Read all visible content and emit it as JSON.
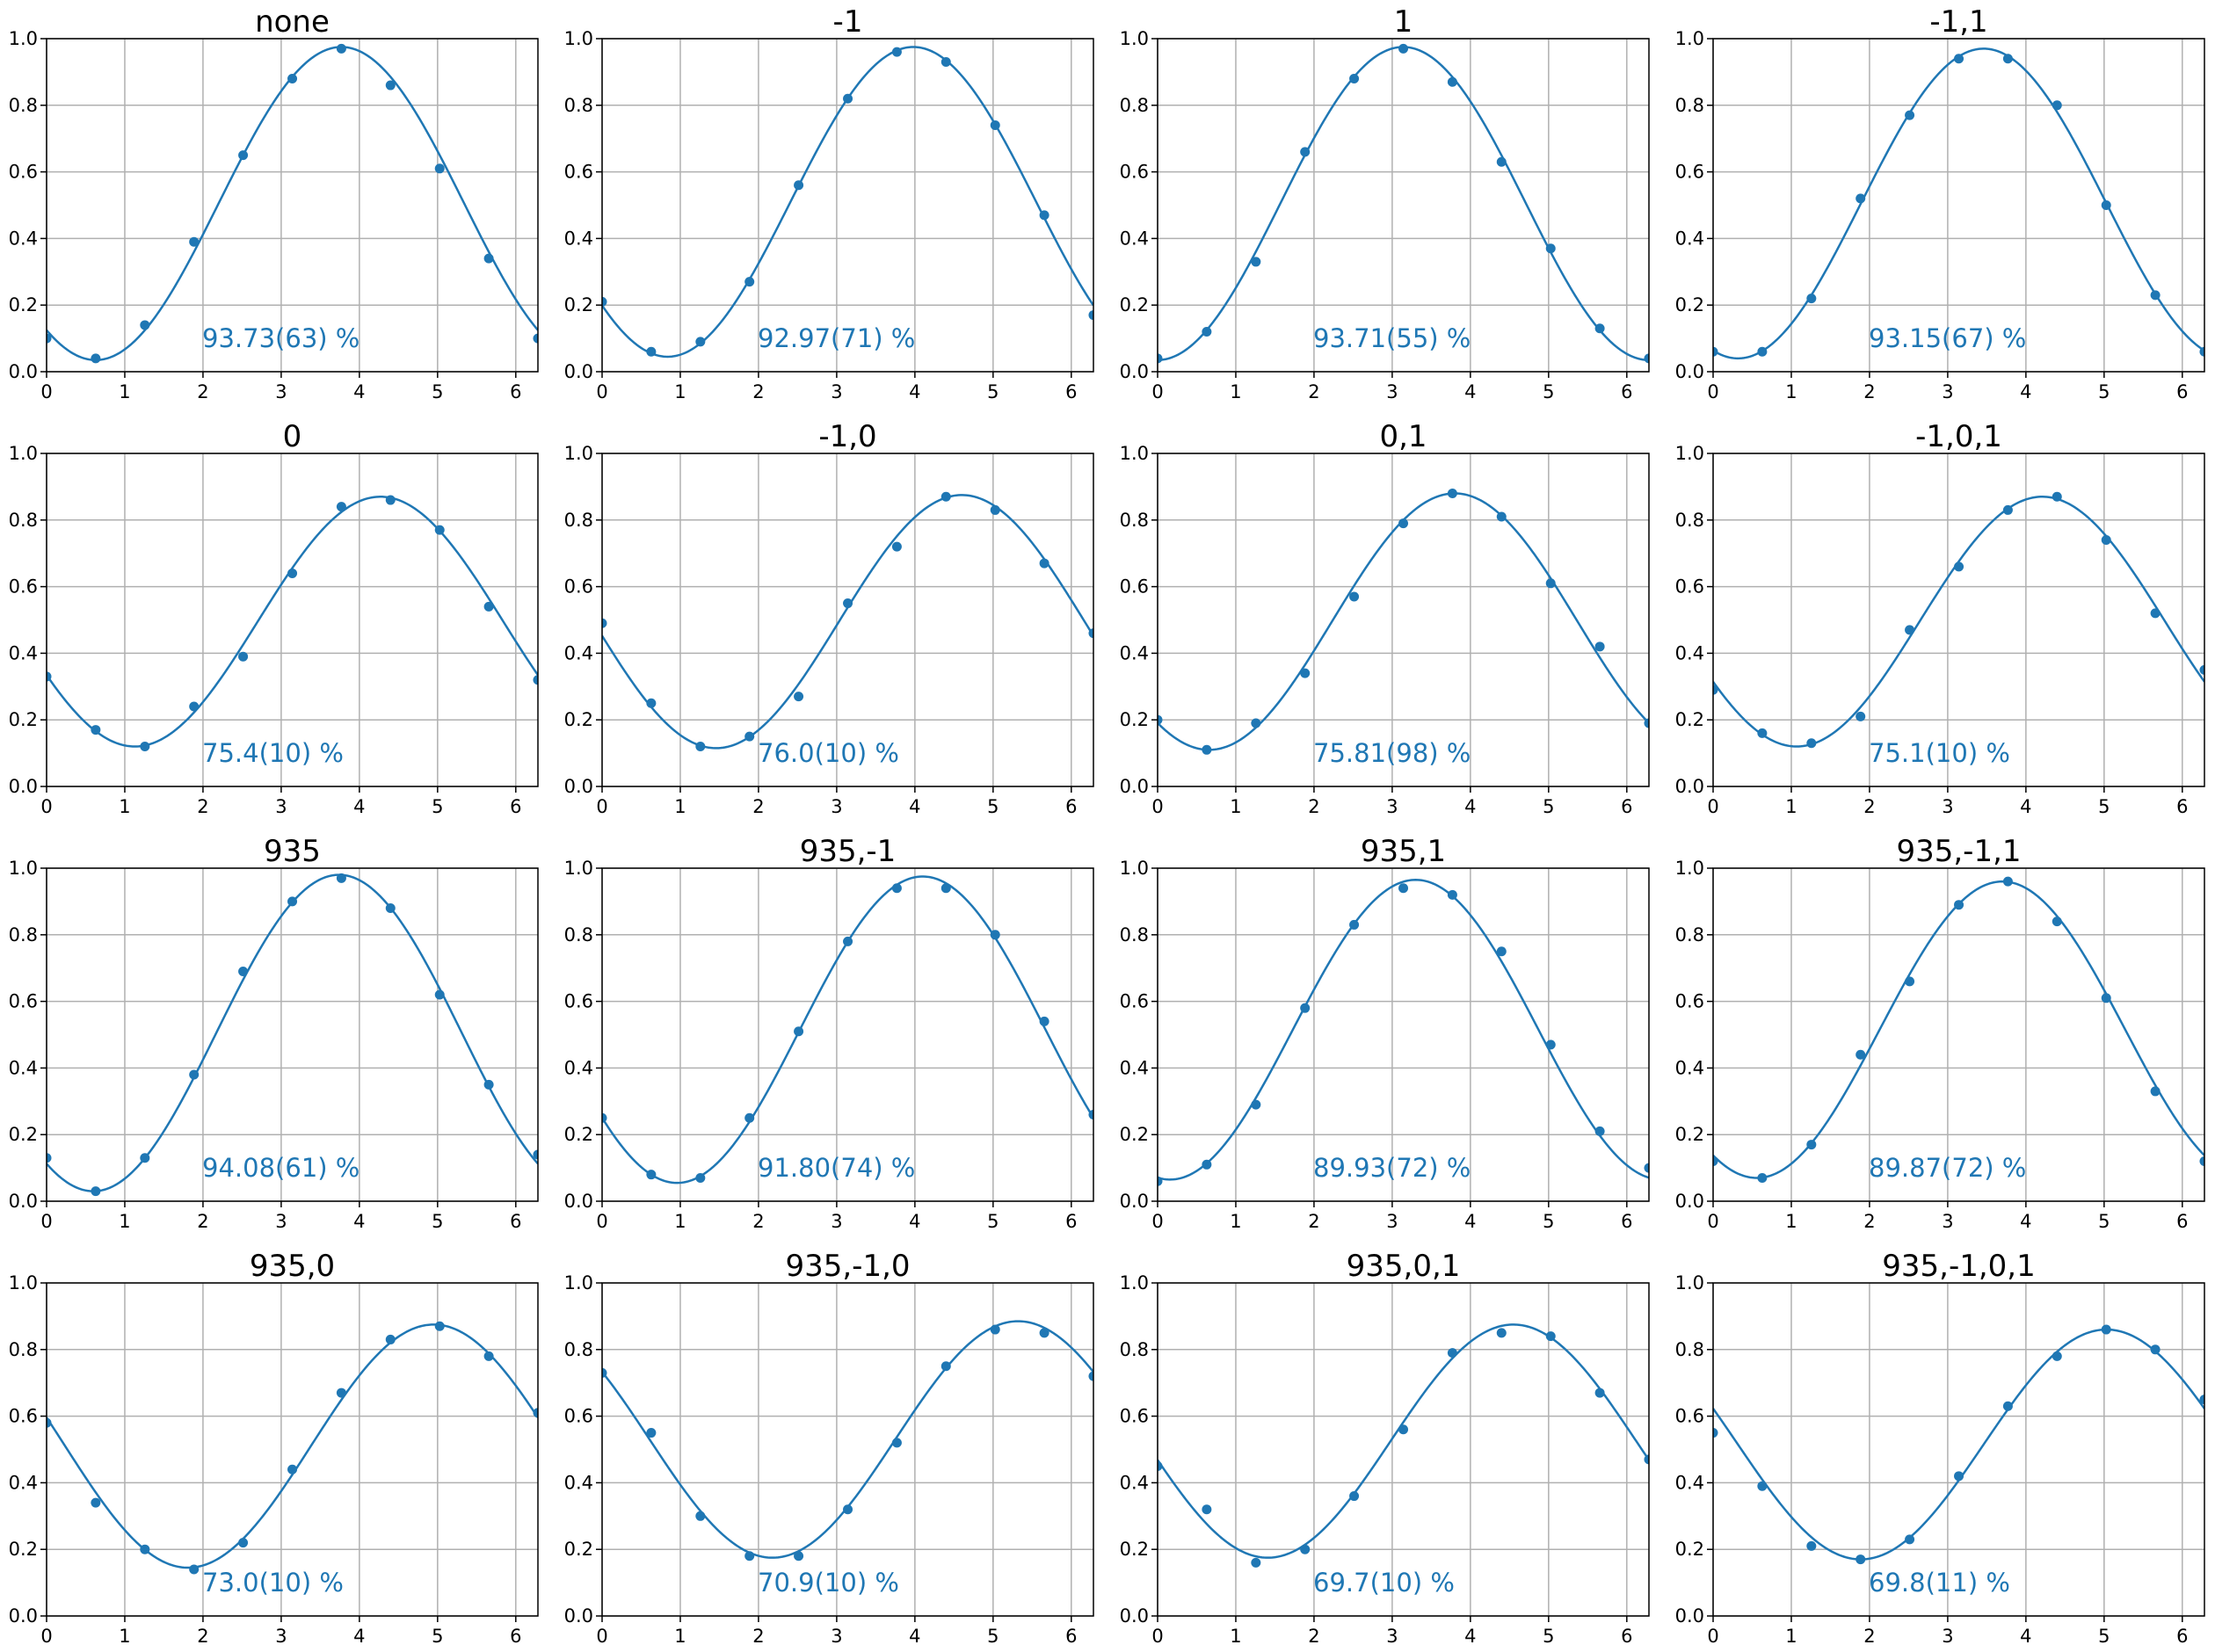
{
  "colors": {
    "series": "#1f77b4",
    "grid": "#b0b0b0",
    "axes": "#000000"
  },
  "chart_data": [
    {
      "type": "scatter",
      "title": "none",
      "annotation": "93.73(63) %",
      "xlim": [
        0,
        6.2832
      ],
      "ylim": [
        0,
        1
      ],
      "xticks": [
        0,
        1,
        2,
        3,
        4,
        5,
        6
      ],
      "yticks": [
        0.0,
        0.2,
        0.4,
        0.6,
        0.8,
        1.0
      ],
      "grid": true,
      "points": {
        "x": [
          0,
          0.628,
          1.257,
          1.885,
          2.513,
          3.142,
          3.77,
          4.398,
          5.027,
          5.655,
          6.283
        ],
        "y": [
          0.1,
          0.04,
          0.14,
          0.39,
          0.65,
          0.88,
          0.97,
          0.86,
          0.61,
          0.34,
          0.1
        ]
      },
      "fit": {
        "offset": 0.505,
        "amplitude": 0.47,
        "phase": 3.77
      }
    },
    {
      "type": "scatter",
      "title": "-1",
      "annotation": "92.97(71) %",
      "xlim": [
        0,
        6.2832
      ],
      "ylim": [
        0,
        1
      ],
      "xticks": [
        0,
        1,
        2,
        3,
        4,
        5,
        6
      ],
      "yticks": [
        0.0,
        0.2,
        0.4,
        0.6,
        0.8,
        1.0
      ],
      "grid": true,
      "points": {
        "x": [
          0,
          0.628,
          1.257,
          1.885,
          2.513,
          3.142,
          3.77,
          4.398,
          5.027,
          5.655,
          6.283
        ],
        "y": [
          0.21,
          0.06,
          0.09,
          0.27,
          0.56,
          0.82,
          0.96,
          0.93,
          0.74,
          0.47,
          0.17
        ]
      },
      "fit": {
        "offset": 0.51,
        "amplitude": 0.465,
        "phase": 3.98
      }
    },
    {
      "type": "scatter",
      "title": "1",
      "annotation": "93.71(55) %",
      "xlim": [
        0,
        6.2832
      ],
      "ylim": [
        0,
        1
      ],
      "xticks": [
        0,
        1,
        2,
        3,
        4,
        5,
        6
      ],
      "yticks": [
        0.0,
        0.2,
        0.4,
        0.6,
        0.8,
        1.0
      ],
      "grid": true,
      "points": {
        "x": [
          0,
          0.628,
          1.257,
          1.885,
          2.513,
          3.142,
          3.77,
          4.398,
          5.027,
          5.655,
          6.283
        ],
        "y": [
          0.04,
          0.12,
          0.33,
          0.66,
          0.88,
          0.97,
          0.87,
          0.63,
          0.37,
          0.13,
          0.04
        ]
      },
      "fit": {
        "offset": 0.505,
        "amplitude": 0.47,
        "phase": 3.14
      }
    },
    {
      "type": "scatter",
      "title": "-1,1",
      "annotation": "93.15(67) %",
      "xlim": [
        0,
        6.2832
      ],
      "ylim": [
        0,
        1
      ],
      "xticks": [
        0,
        1,
        2,
        3,
        4,
        5,
        6
      ],
      "yticks": [
        0.0,
        0.2,
        0.4,
        0.6,
        0.8,
        1.0
      ],
      "grid": true,
      "points": {
        "x": [
          0,
          0.628,
          1.257,
          1.885,
          2.513,
          3.142,
          3.77,
          4.398,
          5.027,
          5.655,
          6.283
        ],
        "y": [
          0.06,
          0.06,
          0.22,
          0.52,
          0.77,
          0.94,
          0.94,
          0.8,
          0.5,
          0.23,
          0.06
        ]
      },
      "fit": {
        "offset": 0.505,
        "amplitude": 0.465,
        "phase": 3.46
      }
    },
    {
      "type": "scatter",
      "title": "0",
      "annotation": "75.4(10) %",
      "xlim": [
        0,
        6.2832
      ],
      "ylim": [
        0,
        1
      ],
      "xticks": [
        0,
        1,
        2,
        3,
        4,
        5,
        6
      ],
      "yticks": [
        0.0,
        0.2,
        0.4,
        0.6,
        0.8,
        1.0
      ],
      "grid": true,
      "points": {
        "x": [
          0,
          0.628,
          1.257,
          1.885,
          2.513,
          3.142,
          3.77,
          4.398,
          5.027,
          5.655,
          6.283
        ],
        "y": [
          0.33,
          0.17,
          0.12,
          0.24,
          0.39,
          0.64,
          0.84,
          0.86,
          0.77,
          0.54,
          0.32
        ]
      },
      "fit": {
        "offset": 0.495,
        "amplitude": 0.375,
        "phase": 4.27
      }
    },
    {
      "type": "scatter",
      "title": "-1,0",
      "annotation": "76.0(10) %",
      "xlim": [
        0,
        6.2832
      ],
      "ylim": [
        0,
        1
      ],
      "xticks": [
        0,
        1,
        2,
        3,
        4,
        5,
        6
      ],
      "yticks": [
        0.0,
        0.2,
        0.4,
        0.6,
        0.8,
        1.0
      ],
      "grid": true,
      "points": {
        "x": [
          0,
          0.628,
          1.257,
          1.885,
          2.513,
          3.142,
          3.77,
          4.398,
          5.027,
          5.655,
          6.283
        ],
        "y": [
          0.49,
          0.25,
          0.12,
          0.15,
          0.27,
          0.55,
          0.72,
          0.87,
          0.83,
          0.67,
          0.46
        ]
      },
      "fit": {
        "offset": 0.495,
        "amplitude": 0.38,
        "phase": 4.6
      }
    },
    {
      "type": "scatter",
      "title": "0,1",
      "annotation": "75.81(98) %",
      "xlim": [
        0,
        6.2832
      ],
      "ylim": [
        0,
        1
      ],
      "xticks": [
        0,
        1,
        2,
        3,
        4,
        5,
        6
      ],
      "yticks": [
        0.0,
        0.2,
        0.4,
        0.6,
        0.8,
        1.0
      ],
      "grid": true,
      "points": {
        "x": [
          0,
          0.628,
          1.257,
          1.885,
          2.513,
          3.142,
          3.77,
          4.398,
          5.027,
          5.655,
          6.283
        ],
        "y": [
          0.2,
          0.11,
          0.19,
          0.34,
          0.57,
          0.79,
          0.88,
          0.81,
          0.61,
          0.42,
          0.19
        ]
      },
      "fit": {
        "offset": 0.495,
        "amplitude": 0.385,
        "phase": 3.8
      }
    },
    {
      "type": "scatter",
      "title": "-1,0,1",
      "annotation": "75.1(10) %",
      "xlim": [
        0,
        6.2832
      ],
      "ylim": [
        0,
        1
      ],
      "xticks": [
        0,
        1,
        2,
        3,
        4,
        5,
        6
      ],
      "yticks": [
        0.0,
        0.2,
        0.4,
        0.6,
        0.8,
        1.0
      ],
      "grid": true,
      "points": {
        "x": [
          0,
          0.628,
          1.257,
          1.885,
          2.513,
          3.142,
          3.77,
          4.398,
          5.027,
          5.655,
          6.283
        ],
        "y": [
          0.29,
          0.16,
          0.13,
          0.21,
          0.47,
          0.66,
          0.83,
          0.87,
          0.74,
          0.52,
          0.35
        ]
      },
      "fit": {
        "offset": 0.495,
        "amplitude": 0.375,
        "phase": 4.21
      }
    },
    {
      "type": "scatter",
      "title": "935",
      "annotation": "94.08(61) %",
      "xlim": [
        0,
        6.2832
      ],
      "ylim": [
        0,
        1
      ],
      "xticks": [
        0,
        1,
        2,
        3,
        4,
        5,
        6
      ],
      "yticks": [
        0.0,
        0.2,
        0.4,
        0.6,
        0.8,
        1.0
      ],
      "grid": true,
      "points": {
        "x": [
          0,
          0.628,
          1.257,
          1.885,
          2.513,
          3.142,
          3.77,
          4.398,
          5.027,
          5.655,
          6.283
        ],
        "y": [
          0.13,
          0.03,
          0.13,
          0.38,
          0.69,
          0.9,
          0.97,
          0.88,
          0.62,
          0.35,
          0.14
        ]
      },
      "fit": {
        "offset": 0.505,
        "amplitude": 0.475,
        "phase": 3.74
      }
    },
    {
      "type": "scatter",
      "title": "935,-1",
      "annotation": "91.80(74) %",
      "xlim": [
        0,
        6.2832
      ],
      "ylim": [
        0,
        1
      ],
      "xticks": [
        0,
        1,
        2,
        3,
        4,
        5,
        6
      ],
      "yticks": [
        0.0,
        0.2,
        0.4,
        0.6,
        0.8,
        1.0
      ],
      "grid": true,
      "points": {
        "x": [
          0,
          0.628,
          1.257,
          1.885,
          2.513,
          3.142,
          3.77,
          4.398,
          5.027,
          5.655,
          6.283
        ],
        "y": [
          0.25,
          0.08,
          0.07,
          0.25,
          0.51,
          0.78,
          0.94,
          0.94,
          0.8,
          0.54,
          0.26
        ]
      },
      "fit": {
        "offset": 0.515,
        "amplitude": 0.46,
        "phase": 4.1
      }
    },
    {
      "type": "scatter",
      "title": "935,1",
      "annotation": "89.93(72) %",
      "xlim": [
        0,
        6.2832
      ],
      "ylim": [
        0,
        1
      ],
      "xticks": [
        0,
        1,
        2,
        3,
        4,
        5,
        6
      ],
      "yticks": [
        0.0,
        0.2,
        0.4,
        0.6,
        0.8,
        1.0
      ],
      "grid": true,
      "points": {
        "x": [
          0,
          0.628,
          1.257,
          1.885,
          2.513,
          3.142,
          3.77,
          4.398,
          5.027,
          5.655,
          6.283
        ],
        "y": [
          0.06,
          0.11,
          0.29,
          0.58,
          0.83,
          0.94,
          0.92,
          0.75,
          0.47,
          0.21,
          0.1
        ]
      },
      "fit": {
        "offset": 0.515,
        "amplitude": 0.45,
        "phase": 3.3
      }
    },
    {
      "type": "scatter",
      "title": "935,-1,1",
      "annotation": "89.87(72) %",
      "xlim": [
        0,
        6.2832
      ],
      "ylim": [
        0,
        1
      ],
      "xticks": [
        0,
        1,
        2,
        3,
        4,
        5,
        6
      ],
      "yticks": [
        0.0,
        0.2,
        0.4,
        0.6,
        0.8,
        1.0
      ],
      "grid": true,
      "points": {
        "x": [
          0,
          0.628,
          1.257,
          1.885,
          2.513,
          3.142,
          3.77,
          4.398,
          5.027,
          5.655,
          6.283
        ],
        "y": [
          0.12,
          0.07,
          0.17,
          0.44,
          0.66,
          0.89,
          0.96,
          0.84,
          0.61,
          0.33,
          0.12
        ]
      },
      "fit": {
        "offset": 0.515,
        "amplitude": 0.445,
        "phase": 3.7
      }
    },
    {
      "type": "scatter",
      "title": "935,0",
      "annotation": "73.0(10) %",
      "xlim": [
        0,
        6.2832
      ],
      "ylim": [
        0,
        1
      ],
      "xticks": [
        0,
        1,
        2,
        3,
        4,
        5,
        6
      ],
      "yticks": [
        0.0,
        0.2,
        0.4,
        0.6,
        0.8,
        1.0
      ],
      "grid": true,
      "points": {
        "x": [
          0,
          0.628,
          1.257,
          1.885,
          2.513,
          3.142,
          3.77,
          4.398,
          5.027,
          5.655,
          6.283
        ],
        "y": [
          0.58,
          0.34,
          0.2,
          0.14,
          0.22,
          0.44,
          0.67,
          0.83,
          0.87,
          0.78,
          0.61
        ]
      },
      "fit": {
        "offset": 0.51,
        "amplitude": 0.365,
        "phase": 4.95
      }
    },
    {
      "type": "scatter",
      "title": "935,-1,0",
      "annotation": "70.9(10) %",
      "xlim": [
        0,
        6.2832
      ],
      "ylim": [
        0,
        1
      ],
      "xticks": [
        0,
        1,
        2,
        3,
        4,
        5,
        6
      ],
      "yticks": [
        0.0,
        0.2,
        0.4,
        0.6,
        0.8,
        1.0
      ],
      "grid": true,
      "points": {
        "x": [
          0,
          0.628,
          1.257,
          1.885,
          2.513,
          3.142,
          3.77,
          4.398,
          5.027,
          5.655,
          6.283
        ],
        "y": [
          0.73,
          0.55,
          0.3,
          0.18,
          0.18,
          0.32,
          0.52,
          0.75,
          0.86,
          0.85,
          0.72
        ]
      },
      "fit": {
        "offset": 0.53,
        "amplitude": 0.355,
        "phase": 5.32
      }
    },
    {
      "type": "scatter",
      "title": "935,0,1",
      "annotation": "69.7(10) %",
      "xlim": [
        0,
        6.2832
      ],
      "ylim": [
        0,
        1
      ],
      "xticks": [
        0,
        1,
        2,
        3,
        4,
        5,
        6
      ],
      "yticks": [
        0.0,
        0.2,
        0.4,
        0.6,
        0.8,
        1.0
      ],
      "grid": true,
      "points": {
        "x": [
          0,
          0.628,
          1.257,
          1.885,
          2.513,
          3.142,
          3.77,
          4.398,
          5.027,
          5.655,
          6.283
        ],
        "y": [
          0.45,
          0.32,
          0.16,
          0.2,
          0.36,
          0.56,
          0.79,
          0.85,
          0.84,
          0.67,
          0.47
        ]
      },
      "fit": {
        "offset": 0.525,
        "amplitude": 0.35,
        "phase": 4.55
      }
    },
    {
      "type": "scatter",
      "title": "935,-1,0,1",
      "annotation": "69.8(11) %",
      "xlim": [
        0,
        6.2832
      ],
      "ylim": [
        0,
        1
      ],
      "xticks": [
        0,
        1,
        2,
        3,
        4,
        5,
        6
      ],
      "yticks": [
        0.0,
        0.2,
        0.4,
        0.6,
        0.8,
        1.0
      ],
      "grid": true,
      "points": {
        "x": [
          0,
          0.628,
          1.257,
          1.885,
          2.513,
          3.142,
          3.77,
          4.398,
          5.027,
          5.655,
          6.283
        ],
        "y": [
          0.55,
          0.39,
          0.21,
          0.17,
          0.23,
          0.42,
          0.63,
          0.78,
          0.86,
          0.8,
          0.65
        ]
      },
      "fit": {
        "offset": 0.515,
        "amplitude": 0.345,
        "phase": 5.03
      }
    }
  ]
}
